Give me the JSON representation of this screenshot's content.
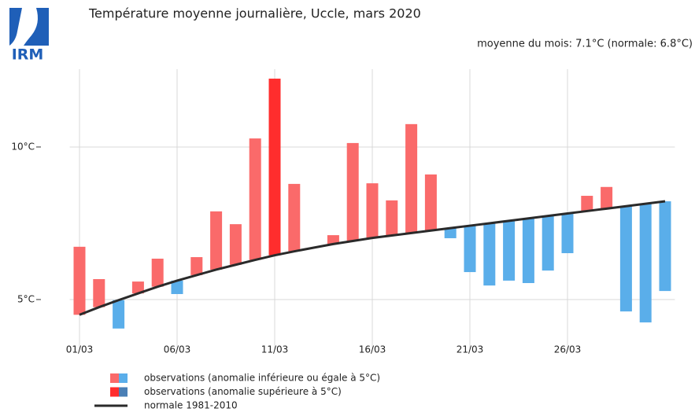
{
  "logo_text": "IRM",
  "chart_data": {
    "type": "bar",
    "title": "Température moyenne journalière, Uccle, mars 2020",
    "subtitle": "moyenne du mois: 7.1°C (normale: 6.8°C)",
    "categories": [
      "01/03",
      null,
      null,
      null,
      null,
      "06/03",
      null,
      null,
      null,
      null,
      "11/03",
      null,
      null,
      null,
      null,
      "16/03",
      null,
      null,
      null,
      null,
      "21/03",
      null,
      null,
      null,
      null,
      "26/03",
      null,
      null,
      null,
      null,
      null
    ],
    "series": [
      {
        "name": "observations (anomalie inférieure ou égale à 5°C)",
        "colors": [
          "#fa6a6a",
          "#5aaeea"
        ],
        "values": [
          6.73,
          5.67,
          4.05,
          5.59,
          6.34,
          5.18,
          6.39,
          7.89,
          7.47,
          10.28,
          null,
          8.79,
          6.7,
          7.11,
          10.13,
          8.81,
          8.25,
          10.75,
          9.1,
          7.01,
          5.9,
          5.46,
          5.62,
          5.54,
          5.95,
          6.52,
          8.4,
          8.69,
          4.61,
          4.25,
          5.28
        ]
      },
      {
        "name": "observations (anomalie supérieure à 5°C)",
        "colors": [
          "#ff2d2d",
          "#4a7fb5"
        ],
        "values": [
          null,
          null,
          null,
          null,
          null,
          null,
          null,
          null,
          null,
          null,
          12.24,
          null,
          null,
          null,
          null,
          null,
          null,
          null,
          null,
          null,
          null,
          null,
          null,
          null,
          null,
          null,
          null,
          null,
          null,
          null,
          null
        ]
      },
      {
        "name": "normale 1981-2010",
        "color": "#2a2a2a",
        "values": [
          4.5,
          4.75,
          4.98,
          5.2,
          5.42,
          5.62,
          5.8,
          5.98,
          6.14,
          6.3,
          6.45,
          6.58,
          6.7,
          6.82,
          6.92,
          7.02,
          7.1,
          7.18,
          7.26,
          7.34,
          7.42,
          7.5,
          7.58,
          7.66,
          7.74,
          7.82,
          7.9,
          7.98,
          8.06,
          8.14,
          8.22
        ]
      }
    ],
    "ylim": [
      3.35,
      12.55
    ],
    "yticks": [
      {
        "value": 5,
        "label": "5°C"
      },
      {
        "value": 10,
        "label": "10°C"
      }
    ],
    "grid": true
  }
}
